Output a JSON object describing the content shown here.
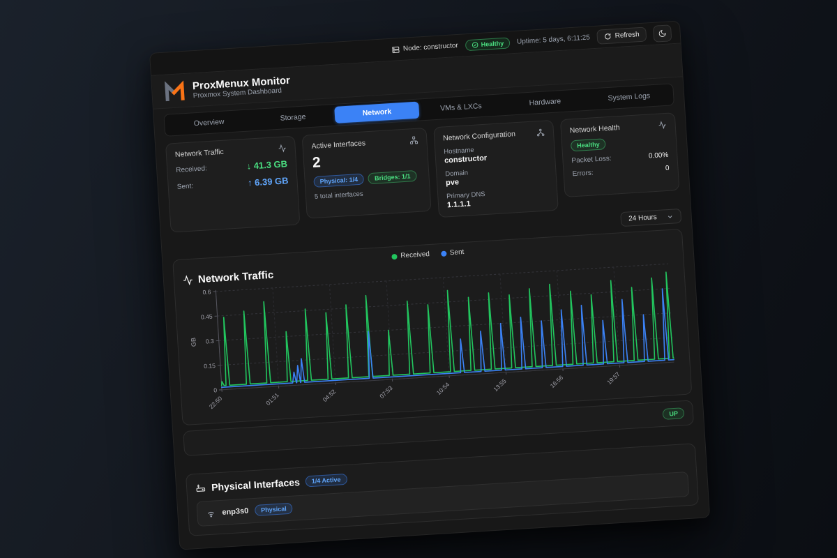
{
  "topbar": {
    "node_label": "Node: constructor",
    "health_badge": "Healthy",
    "uptime": "Uptime: 5 days, 6:11:25",
    "refresh_label": "Refresh"
  },
  "header": {
    "title": "ProxMenux Monitor",
    "subtitle": "Proxmox System Dashboard"
  },
  "tabs": [
    {
      "label": "Overview",
      "active": false
    },
    {
      "label": "Storage",
      "active": false
    },
    {
      "label": "Network",
      "active": true
    },
    {
      "label": "VMs & LXCs",
      "active": false
    },
    {
      "label": "Hardware",
      "active": false
    },
    {
      "label": "System Logs",
      "active": false
    }
  ],
  "cards": {
    "traffic": {
      "title": "Network Traffic",
      "received_label": "Received:",
      "received_value": "↓ 41.3 GB",
      "sent_label": "Sent:",
      "sent_value": "↑ 6.39 GB"
    },
    "interfaces": {
      "title": "Active Interfaces",
      "count": "2",
      "physical_badge": "Physical: 1/4",
      "bridges_badge": "Bridges: 1/1",
      "total": "5 total interfaces"
    },
    "config": {
      "title": "Network Configuration",
      "hostname_label": "Hostname",
      "hostname": "constructor",
      "domain_label": "Domain",
      "domain": "pve",
      "dns_label": "Primary DNS",
      "dns": "1.1.1.1"
    },
    "health": {
      "title": "Network Health",
      "status": "Healthy",
      "packet_loss_label": "Packet Loss:",
      "packet_loss": "0.00%",
      "errors_label": "Errors:",
      "errors": "0"
    }
  },
  "controls": {
    "time_range": "24 Hours"
  },
  "chart_data": {
    "type": "line",
    "title": "Network Traffic",
    "ylabel": "GB",
    "ylim": [
      0,
      0.6
    ],
    "yticks": [
      0,
      0.15,
      0.3,
      0.45,
      0.6
    ],
    "ytick_labels": [
      "0",
      "0.15",
      "0.3",
      "0.45",
      "0.6"
    ],
    "xticks": [
      "22:50",
      "01:51",
      "04:52",
      "07:53",
      "10:54",
      "13:55",
      "16:56",
      "19:57"
    ],
    "xtick_minutes": [
      0,
      181,
      362,
      543,
      724,
      905,
      1086,
      1267
    ],
    "duration_minutes": 1440,
    "grid": "dashed",
    "legend": [
      "Received",
      "Sent"
    ],
    "legend_position": "top-center",
    "series": [
      {
        "name": "Received",
        "color": "#22c55e",
        "baseline_gb": 0.025,
        "spikes": [
          [
            2,
            0.05
          ],
          [
            20,
            0.44
          ],
          [
            85,
            0.47
          ],
          [
            150,
            0.52
          ],
          [
            215,
            0.33
          ],
          [
            280,
            0.46
          ],
          [
            345,
            0.43
          ],
          [
            410,
            0.47
          ],
          [
            475,
            0.52
          ],
          [
            540,
            0.3
          ],
          [
            605,
            0.47
          ],
          [
            670,
            0.44
          ],
          [
            735,
            0.52
          ],
          [
            800,
            0.47
          ],
          [
            865,
            0.49
          ],
          [
            930,
            0.47
          ],
          [
            995,
            0.5
          ],
          [
            1060,
            0.52
          ],
          [
            1125,
            0.47
          ],
          [
            1190,
            0.44
          ],
          [
            1255,
            0.52
          ],
          [
            1320,
            0.47
          ],
          [
            1385,
            0.52
          ],
          [
            1432,
            0.55
          ]
        ]
      },
      {
        "name": "Sent",
        "color": "#3b82f6",
        "baseline_gb": 0.015,
        "spikes": [
          [
            232,
            0.08
          ],
          [
            245,
            0.12
          ],
          [
            258,
            0.16
          ],
          [
            476,
            0.3
          ],
          [
            767,
            0.22
          ],
          [
            832,
            0.26
          ],
          [
            897,
            0.3
          ],
          [
            962,
            0.33
          ],
          [
            1027,
            0.3
          ],
          [
            1092,
            0.36
          ],
          [
            1157,
            0.38
          ],
          [
            1222,
            0.28
          ],
          [
            1287,
            0.4
          ],
          [
            1352,
            0.3
          ],
          [
            1417,
            0.45
          ]
        ]
      }
    ]
  },
  "bridge_row": {
    "status": "UP"
  },
  "physical_section": {
    "title": "Physical Interfaces",
    "active_badge": "1/4 Active",
    "rows": [
      {
        "name": "enp3s0",
        "type_badge": "Physical"
      }
    ]
  },
  "colors": {
    "accent_blue": "#3b82f6",
    "green": "#22c55e",
    "green_text": "#4ade80",
    "blue_text": "#60a5fa",
    "brand_orange": "#f97316",
    "brand_gray": "#6b7280"
  }
}
